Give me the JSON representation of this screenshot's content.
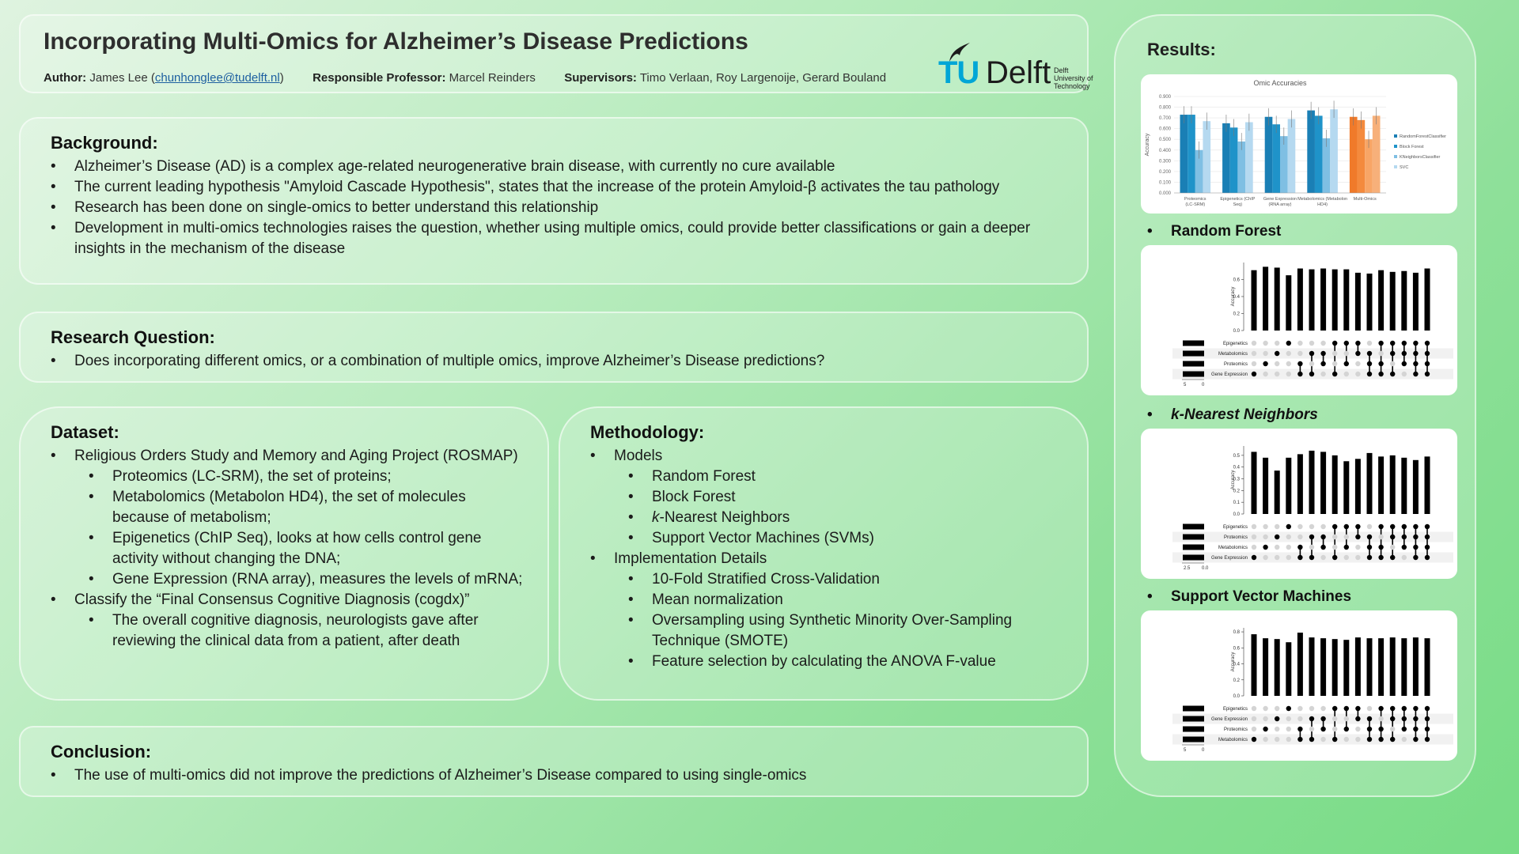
{
  "header": {
    "title": "Incorporating Multi-Omics for Alzheimer’s Disease Predictions",
    "author_label": "Author:",
    "author_name": "James Lee (",
    "author_email": "chunhonglee@tudelft.nl",
    "author_close": ")",
    "professor_label": "Responsible Professor:",
    "professor_name": "Marcel Reinders",
    "supervisors_label": "Supervisors:",
    "supervisors_names": "Timo Verlaan, Roy Largenoije, Gerard Bouland",
    "logo": {
      "tu": "TU",
      "delft": "Delft",
      "sub1": "Delft",
      "sub2": "University of",
      "sub3": "Technology"
    }
  },
  "background": {
    "title": "Background:",
    "items": [
      "Alzheimer’s Disease (AD) is a complex age-related neurogenerative brain disease, with currently no cure available",
      "The current leading hypothesis \"Amyloid Cascade Hypothesis\", states that the increase of the protein Amyloid-β activates the tau pathology",
      "Research has been done on single-omics to better understand this relationship",
      "Development in multi-omics technologies raises the question, whether using multiple omics, could provide better classifications or gain a deeper insights in the mechanism of the disease"
    ]
  },
  "research_question": {
    "title": "Research Question:",
    "items": [
      "Does incorporating different omics, or a combination of multiple omics, improve Alzheimer’s Disease predictions?"
    ]
  },
  "dataset": {
    "title": "Dataset:",
    "item1": "Religious Orders Study and Memory and Aging Project (ROSMAP)",
    "sub1": [
      "Proteomics (LC-SRM), the set of proteins;",
      "Metabolomics (Metabolon HD4), the set of molecules because of metabolism;",
      "Epigenetics (ChIP Seq), looks at how cells control gene activity without changing the DNA;",
      "Gene Expression (RNA array), measures the levels of mRNA;"
    ],
    "item2": "Classify the “Final Consensus Cognitive Diagnosis (cogdx)”",
    "sub2": [
      "The overall cognitive diagnosis, neurologists gave after reviewing the clinical data from a patient, after death"
    ]
  },
  "methodology": {
    "title": "Methodology:",
    "item1": "Models",
    "models": [
      "Random Forest",
      "Block Forest",
      "-Nearest Neighbors",
      "Support Vector Machines (SVMs)"
    ],
    "k": "k",
    "item2": "Implementation Details",
    "details": [
      "10-Fold Stratified Cross-Validation",
      "Mean normalization",
      "Oversampling using Synthetic Minority Over-Sampling Technique (SMOTE)",
      "Feature selection by calculating the ANOVA F-value"
    ]
  },
  "conclusion": {
    "title": "Conclusion:",
    "items": [
      "The use of multi-omics did not improve the predictions of Alzheimer’s Disease compared to using single-omics"
    ]
  },
  "results": {
    "title": "Results:",
    "labels": [
      "Random Forest",
      "k-Nearest Neighbors",
      "Support Vector Machines"
    ]
  },
  "colors": {
    "rf": "#1a7fb5",
    "bf": "#1f93c9",
    "knn": "#7fbfe3",
    "svc": "#b5d9f0",
    "multi": "#f07a2a"
  },
  "chart_data": [
    {
      "type": "bar",
      "title": "Omic Accuracies",
      "ylabel": "Accuracy",
      "ylim": [
        0,
        0.9
      ],
      "yticks": [
        "0.000",
        "0.100",
        "0.200",
        "0.300",
        "0.400",
        "0.500",
        "0.600",
        "0.700",
        "0.800",
        "0.900"
      ],
      "categories": [
        "Proteomics (LC-SRM)",
        "Epigenetics (ChIP Seq)",
        "Gene Expression (RNA array)",
        "Metabolomics (Metabolon HD4)",
        "Multi-Omics"
      ],
      "series": [
        {
          "name": "RandomForestClassifier",
          "values": [
            0.73,
            0.65,
            0.71,
            0.77,
            0.71
          ]
        },
        {
          "name": "Block Forest",
          "values": [
            0.73,
            0.61,
            0.64,
            0.72,
            0.68
          ]
        },
        {
          "name": "KNeighborsClassifier",
          "values": [
            0.4,
            0.48,
            0.53,
            0.51,
            0.5
          ]
        },
        {
          "name": "SVC",
          "values": [
            0.67,
            0.66,
            0.69,
            0.78,
            0.72
          ]
        }
      ],
      "legend": "right"
    },
    {
      "type": "upset",
      "model": "Random Forest",
      "ylabel": "Accuracy",
      "yticks": [
        "0.0",
        "0.2",
        "0.4",
        "0.6"
      ],
      "ylim": [
        0,
        0.8
      ],
      "sets": [
        "Epigenetics",
        "Metabolomics",
        "Proteomics",
        "Gene Expression"
      ],
      "set_axis_ticks": [
        "5",
        "0"
      ],
      "values": [
        0.71,
        0.75,
        0.74,
        0.65,
        0.73,
        0.72,
        0.73,
        0.72,
        0.72,
        0.68,
        0.67,
        0.71,
        0.69,
        0.7,
        0.68,
        0.73
      ],
      "combos": [
        [
          3
        ],
        [
          2
        ],
        [
          1
        ],
        [
          0
        ],
        [
          2,
          3
        ],
        [
          1,
          3
        ],
        [
          1,
          2
        ],
        [
          0,
          3
        ],
        [
          0,
          2
        ],
        [
          0,
          1
        ],
        [
          1,
          2,
          3
        ],
        [
          0,
          2,
          3
        ],
        [
          0,
          1,
          3
        ],
        [
          0,
          1,
          2
        ],
        [
          0,
          1,
          2,
          3
        ],
        [
          0,
          1,
          2,
          3
        ]
      ]
    },
    {
      "type": "upset",
      "model": "k-Nearest Neighbors",
      "ylabel": "Accuracy",
      "yticks": [
        "0.0",
        "0.1",
        "0.2",
        "0.3",
        "0.4",
        "0.5"
      ],
      "ylim": [
        0,
        0.58
      ],
      "sets": [
        "Epigenetics",
        "Proteomics",
        "Metabolomics",
        "Gene Expression"
      ],
      "set_axis_ticks": [
        "2.5",
        "0.0"
      ],
      "values": [
        0.53,
        0.48,
        0.37,
        0.48,
        0.51,
        0.54,
        0.53,
        0.5,
        0.45,
        0.47,
        0.52,
        0.49,
        0.5,
        0.48,
        0.46,
        0.49
      ],
      "combos": [
        [
          3
        ],
        [
          2
        ],
        [
          1
        ],
        [
          0
        ],
        [
          2,
          3
        ],
        [
          1,
          3
        ],
        [
          1,
          2
        ],
        [
          0,
          3
        ],
        [
          0,
          2
        ],
        [
          0,
          1
        ],
        [
          1,
          2,
          3
        ],
        [
          0,
          2,
          3
        ],
        [
          0,
          1,
          3
        ],
        [
          0,
          1,
          2
        ],
        [
          0,
          1,
          2,
          3
        ],
        [
          0,
          1,
          2,
          3
        ]
      ]
    },
    {
      "type": "upset",
      "model": "Support Vector Machines",
      "ylabel": "Accuracy",
      "yticks": [
        "0.0",
        "0.2",
        "0.4",
        "0.6",
        "0.8"
      ],
      "ylim": [
        0,
        0.85
      ],
      "sets": [
        "Epigenetics",
        "Gene Expression",
        "Proteomics",
        "Metabolomics"
      ],
      "set_axis_ticks": [
        "5",
        "0"
      ],
      "values": [
        0.77,
        0.72,
        0.71,
        0.67,
        0.79,
        0.73,
        0.72,
        0.71,
        0.7,
        0.73,
        0.72,
        0.72,
        0.73,
        0.72,
        0.73,
        0.72
      ],
      "combos": [
        [
          3
        ],
        [
          2
        ],
        [
          1
        ],
        [
          0
        ],
        [
          2,
          3
        ],
        [
          1,
          3
        ],
        [
          1,
          2
        ],
        [
          0,
          3
        ],
        [
          0,
          2
        ],
        [
          0,
          1
        ],
        [
          1,
          2,
          3
        ],
        [
          0,
          2,
          3
        ],
        [
          0,
          1,
          3
        ],
        [
          0,
          1,
          2
        ],
        [
          0,
          1,
          2,
          3
        ],
        [
          0,
          1,
          2,
          3
        ]
      ]
    }
  ]
}
